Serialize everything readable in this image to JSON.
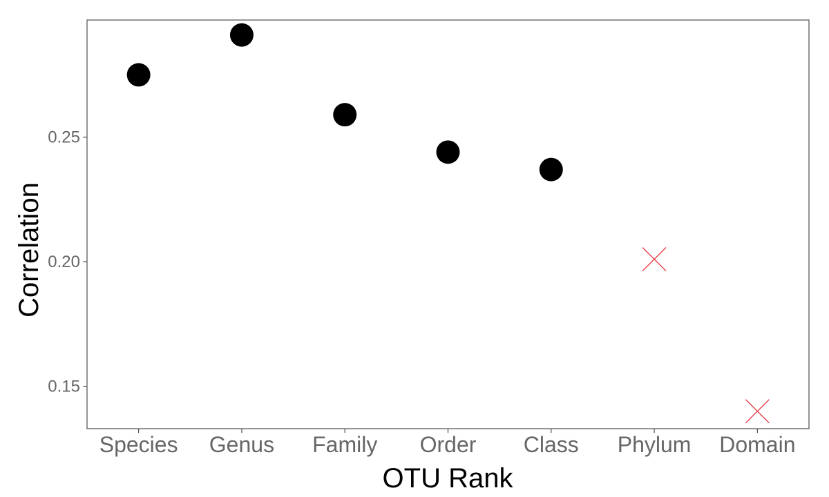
{
  "chart_data": {
    "type": "scatter",
    "title": "",
    "xlabel": "OTU Rank",
    "ylabel": "Correlation",
    "categories": [
      "Species",
      "Genus",
      "Family",
      "Order",
      "Class",
      "Phylum",
      "Domain"
    ],
    "ylim": [
      0.133,
      0.297
    ],
    "yticks": [
      {
        "value": 0.15,
        "label": "0.15"
      },
      {
        "value": 0.2,
        "label": "0.20"
      },
      {
        "value": 0.25,
        "label": "0.25"
      }
    ],
    "grid": false,
    "legend": "none",
    "points": [
      {
        "category": "Species",
        "value": 0.275,
        "marker": "circle",
        "color": "#000000"
      },
      {
        "category": "Genus",
        "value": 0.291,
        "marker": "circle",
        "color": "#000000"
      },
      {
        "category": "Family",
        "value": 0.259,
        "marker": "circle",
        "color": "#000000"
      },
      {
        "category": "Order",
        "value": 0.244,
        "marker": "circle",
        "color": "#000000"
      },
      {
        "category": "Class",
        "value": 0.237,
        "marker": "circle",
        "color": "#000000"
      },
      {
        "category": "Phylum",
        "value": 0.201,
        "marker": "cross",
        "color": "#e8404a"
      },
      {
        "category": "Domain",
        "value": 0.14,
        "marker": "cross",
        "color": "#e8404a"
      }
    ]
  }
}
